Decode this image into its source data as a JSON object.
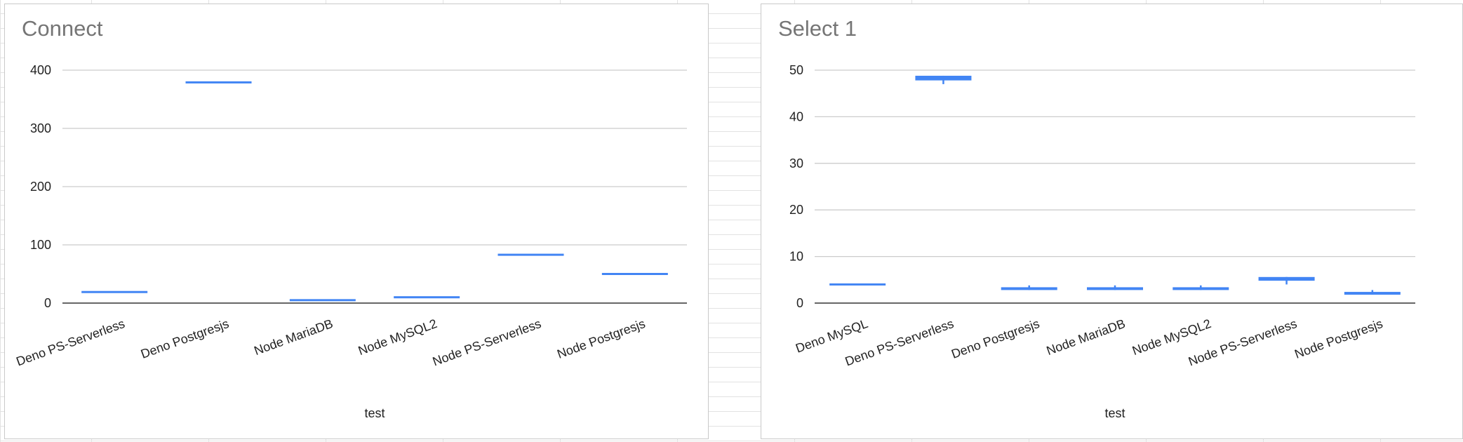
{
  "chart_data": [
    {
      "type": "candlestick",
      "title": "Connect",
      "xlabel": "test",
      "ylabel": "",
      "ylim": [
        0,
        400
      ],
      "yticks": [
        0,
        100,
        200,
        300,
        400
      ],
      "categories": [
        "Deno PS-Serverless",
        "Deno Postgresjs",
        "Node MariaDB",
        "Node MySQL2",
        "Node PS-Serverless",
        "Node Postgresjs"
      ],
      "boxes": [
        {
          "low": 19,
          "open": 19,
          "close": 19,
          "high": 19
        },
        {
          "low": 379,
          "open": 379,
          "close": 379,
          "high": 379
        },
        {
          "low": 5,
          "open": 5,
          "close": 5,
          "high": 5
        },
        {
          "low": 10,
          "open": 10,
          "close": 10,
          "high": 10
        },
        {
          "low": 83,
          "open": 83,
          "close": 83,
          "high": 83
        },
        {
          "low": 50,
          "open": 50,
          "close": 50,
          "high": 50
        }
      ],
      "grid": true,
      "color": "#4285f4"
    },
    {
      "type": "candlestick",
      "title": "Select 1",
      "xlabel": "test",
      "ylabel": "",
      "ylim": [
        0,
        50
      ],
      "yticks": [
        0,
        10,
        20,
        30,
        40,
        50
      ],
      "categories": [
        "Deno MySQL",
        "Deno PS-Serverless",
        "Deno Postgresjs",
        "Node MariaDB",
        "Node MySQL2",
        "Node PS-Serverless",
        "Node Postgresjs"
      ],
      "boxes": [
        {
          "low": 4,
          "open": 4,
          "close": 4,
          "high": 4
        },
        {
          "low": 47,
          "open": 47.8,
          "close": 48.8,
          "high": 48.8
        },
        {
          "low": 2.8,
          "open": 2.8,
          "close": 3.4,
          "high": 3.8
        },
        {
          "low": 2.8,
          "open": 2.8,
          "close": 3.4,
          "high": 3.8
        },
        {
          "low": 2.8,
          "open": 2.8,
          "close": 3.4,
          "high": 3.8
        },
        {
          "low": 4,
          "open": 4.8,
          "close": 5.6,
          "high": 5.6
        },
        {
          "low": 1.8,
          "open": 1.8,
          "close": 2.4,
          "high": 2.8
        }
      ],
      "grid": true,
      "color": "#4285f4"
    }
  ]
}
